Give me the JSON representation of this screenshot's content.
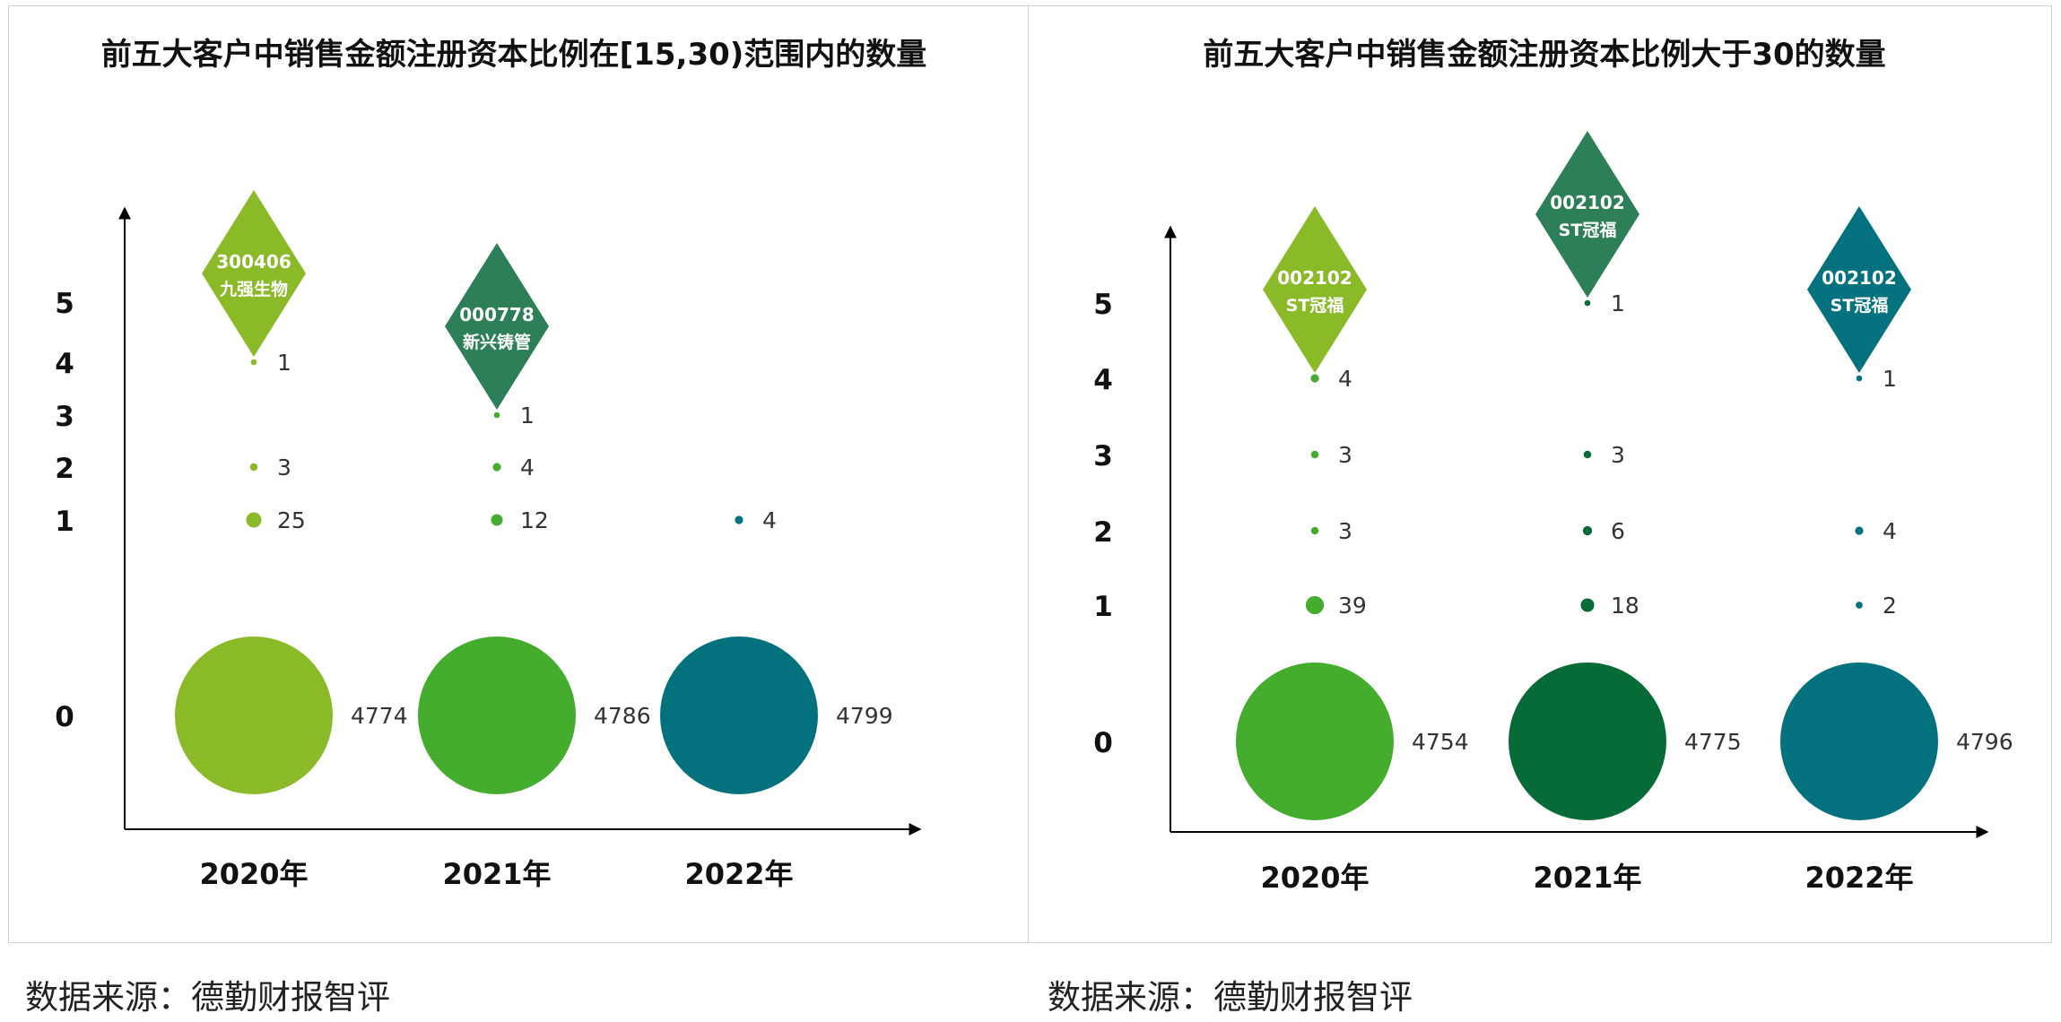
{
  "source_label": "数据来源：德勤财报智评",
  "chart_data": [
    {
      "type": "scatter",
      "title": "前五大客户中销售金额注册资本比例在[15,30)范围内的数量",
      "categories": [
        "2020年",
        "2021年",
        "2022年"
      ],
      "y_ticks": [
        "0",
        "1",
        "2",
        "3",
        "4",
        "5"
      ],
      "colors": [
        "#8aba28",
        "#44ad2e",
        "#04727e"
      ],
      "series": [
        {
          "category": "2020年",
          "points": [
            {
              "y": 0,
              "value": 4774
            },
            {
              "y": 1,
              "value": 25
            },
            {
              "y": 2,
              "value": 3
            },
            {
              "y": 4,
              "value": 1
            }
          ]
        },
        {
          "category": "2021年",
          "points": [
            {
              "y": 0,
              "value": 4786
            },
            {
              "y": 1,
              "value": 12
            },
            {
              "y": 2,
              "value": 4
            },
            {
              "y": 3,
              "value": 1
            }
          ]
        },
        {
          "category": "2022年",
          "points": [
            {
              "y": 0,
              "value": 4799
            },
            {
              "y": 1,
              "value": 4
            }
          ]
        }
      ],
      "markers": [
        {
          "category": "2020年",
          "y": 4,
          "code": "300406",
          "name": "九强生物",
          "color": "#8aba28"
        },
        {
          "category": "2021年",
          "y": 3,
          "code": "000778",
          "name": "新兴铸管",
          "color": "#2c7f56"
        }
      ]
    },
    {
      "type": "scatter",
      "title": "前五大客户中销售金额注册资本比例大于30的数量",
      "categories": [
        "2020年",
        "2021年",
        "2022年"
      ],
      "y_ticks": [
        "0",
        "1",
        "2",
        "3",
        "4",
        "5"
      ],
      "colors": [
        "#44ad2e",
        "#066b36",
        "#04727e"
      ],
      "series": [
        {
          "category": "2020年",
          "points": [
            {
              "y": 0,
              "value": 4754
            },
            {
              "y": 1,
              "value": 39
            },
            {
              "y": 2,
              "value": 3
            },
            {
              "y": 3,
              "value": 3
            },
            {
              "y": 4,
              "value": 4
            }
          ]
        },
        {
          "category": "2021年",
          "points": [
            {
              "y": 0,
              "value": 4775
            },
            {
              "y": 1,
              "value": 18
            },
            {
              "y": 2,
              "value": 6
            },
            {
              "y": 3,
              "value": 3
            },
            {
              "y": 5,
              "value": 1
            }
          ]
        },
        {
          "category": "2022年",
          "points": [
            {
              "y": 0,
              "value": 4796
            },
            {
              "y": 1,
              "value": 2
            },
            {
              "y": 2,
              "value": 4
            },
            {
              "y": 4,
              "value": 1
            }
          ]
        }
      ],
      "markers": [
        {
          "category": "2020年",
          "y": 4,
          "code": "002102",
          "name": "ST冠福",
          "color": "#8aba28"
        },
        {
          "category": "2021年",
          "y": 5,
          "code": "002102",
          "name": "ST冠福",
          "color": "#2c7f56"
        },
        {
          "category": "2022年",
          "y": 4,
          "code": "002102",
          "name": "ST冠福",
          "color": "#04727e"
        }
      ]
    }
  ]
}
